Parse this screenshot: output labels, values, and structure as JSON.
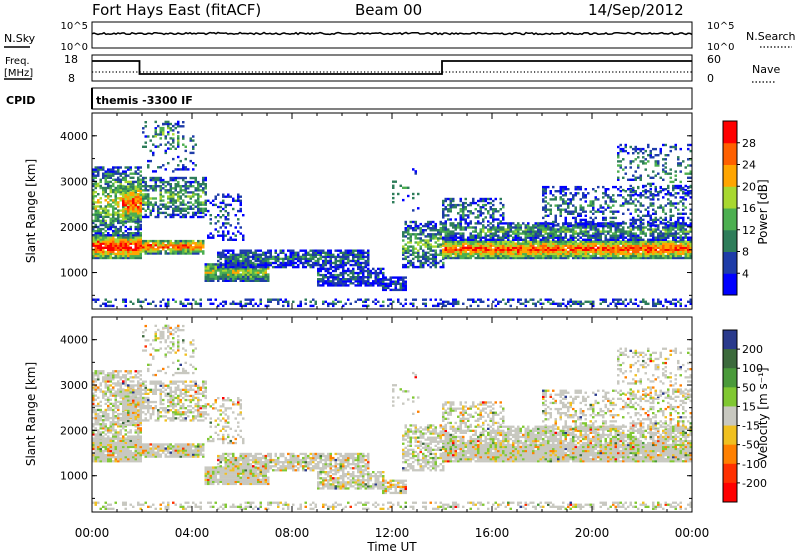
{
  "header": {
    "station": "Fort Hays East (fitACF)",
    "beam": "Beam 00",
    "date": "14/Sep/2012"
  },
  "panels": {
    "nsky": {
      "left_label": "N.Sky",
      "right_label": "N.Search",
      "ticks_left": [
        "10^5",
        "10^0"
      ],
      "ticks_right": [
        "10^5",
        "10^0"
      ]
    },
    "freq": {
      "label_line1": "Freq.",
      "label_line2": "[MHz]",
      "ticks_left": [
        "18",
        "8"
      ],
      "ticks_right": [
        "60",
        "0"
      ],
      "right_label": "Nave"
    },
    "cpid": {
      "label": "CPID",
      "text": "themis -3300 IF"
    }
  },
  "colors": {
    "power": [
      "#0000ff",
      "#1e3ca8",
      "#2e7d5a",
      "#4caf50",
      "#a8d830",
      "#ffa500",
      "#ff6000",
      "#ff0000"
    ],
    "velocity": [
      "#2a3a8c",
      "#3c6a3c",
      "#4a9a3a",
      "#80c832",
      "#c8c8c0",
      "#f0c020",
      "#ff8000",
      "#ff3000",
      "#ff0000"
    ]
  },
  "chart_data": [
    {
      "type": "heatmap",
      "name": "power",
      "ylabel": "Slant Range [km]",
      "yticks": [
        "1000",
        "2000",
        "3000",
        "4000"
      ],
      "ylim": [
        200,
        4500
      ],
      "xlim_hours": [
        0,
        24
      ],
      "colorbar_label": "Power [dB]",
      "colorbar_ticks": [
        "4",
        "8",
        "12",
        "16",
        "20",
        "24",
        "28"
      ],
      "colorbar_range": [
        0,
        32
      ]
    },
    {
      "type": "heatmap",
      "name": "velocity",
      "ylabel": "Slant Range [km]",
      "yticks": [
        "1000",
        "2000",
        "3000",
        "4000"
      ],
      "ylim": [
        200,
        4500
      ],
      "xlim_hours": [
        0,
        24
      ],
      "colorbar_label": "Velocity [m s⁻¹]",
      "colorbar_ticks": [
        "200",
        "100",
        "50",
        "15",
        "-15",
        "-50",
        "-100",
        "-200"
      ]
    }
  ],
  "xaxis": {
    "label": "Time UT",
    "ticks": [
      "00:00",
      "04:00",
      "08:00",
      "12:00",
      "16:00",
      "20:00",
      "00:00"
    ]
  }
}
